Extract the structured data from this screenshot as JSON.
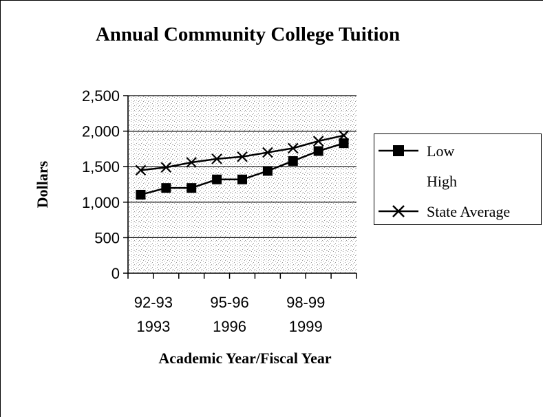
{
  "chart_data": {
    "type": "line",
    "title": "Annual Community College Tuition",
    "xlabel": "Academic Year/Fiscal Year",
    "ylabel": "Dollars",
    "ylim": [
      0,
      2500
    ],
    "yticks": [
      "0",
      "500",
      "1,000",
      "1,500",
      "2,000",
      "2,500"
    ],
    "ytick_values": [
      0,
      500,
      1000,
      1500,
      2000,
      2500
    ],
    "x_category_count": 9,
    "xtick_labels": [
      {
        "index": 0,
        "line1": "92-93",
        "line2": "1993"
      },
      {
        "index": 3,
        "line1": "95-96",
        "line2": "1996"
      },
      {
        "index": 6,
        "line1": "98-99",
        "line2": "1999"
      }
    ],
    "grid": true,
    "legend_position": "right",
    "series": [
      {
        "name": "Low",
        "marker": "square",
        "values": [
          1105,
          1200,
          1200,
          1320,
          1320,
          1440,
          1580,
          1720,
          1830
        ]
      },
      {
        "name": "High",
        "marker": "none",
        "values": []
      },
      {
        "name": "State Average",
        "marker": "x",
        "values": [
          1450,
          1490,
          1560,
          1610,
          1640,
          1700,
          1760,
          1860,
          1940
        ]
      }
    ]
  },
  "colors": {
    "line": "#000000",
    "plot_background": "#f2f2f2",
    "stipple": "#9a9a9a"
  }
}
